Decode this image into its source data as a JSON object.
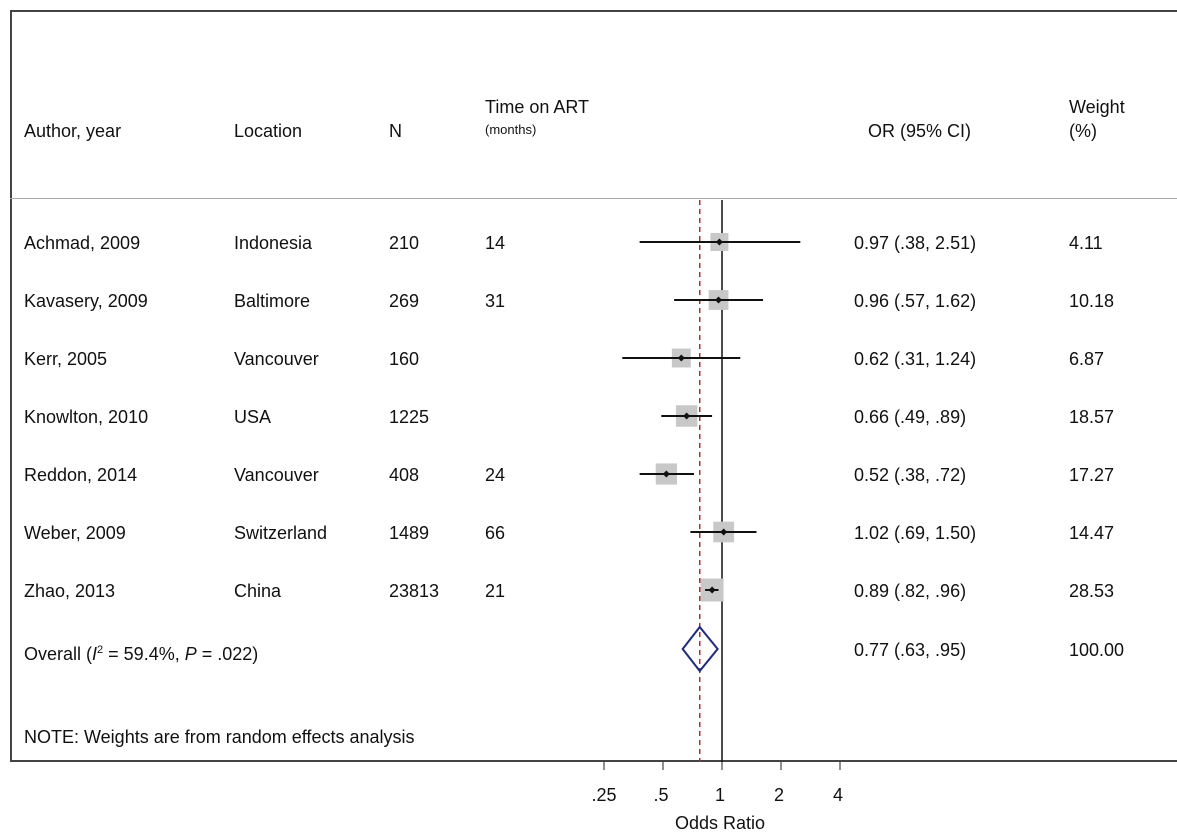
{
  "chart_data": {
    "type": "forest",
    "columns": {
      "author": "Author, year",
      "location": "Location",
      "n": "N",
      "time_title": "Time on ART",
      "time_sub": "(months)",
      "or": "OR (95% CI)",
      "weight_title": "Weight",
      "weight_sub": "(%)"
    },
    "studies": [
      {
        "author": "Achmad, 2009",
        "location": "Indonesia",
        "n": "210",
        "time": "14",
        "or": 0.97,
        "lo": 0.38,
        "hi": 2.51,
        "or_text": "0.97 (.38, 2.51)",
        "weight": "4.11"
      },
      {
        "author": "Kavasery, 2009",
        "location": "Baltimore",
        "n": "269",
        "time": "31",
        "or": 0.96,
        "lo": 0.57,
        "hi": 1.62,
        "or_text": "0.96 (.57, 1.62)",
        "weight": "10.18"
      },
      {
        "author": "Kerr, 2005",
        "location": "Vancouver",
        "n": "160",
        "time": "",
        "or": 0.62,
        "lo": 0.31,
        "hi": 1.24,
        "or_text": "0.62 (.31, 1.24)",
        "weight": "6.87"
      },
      {
        "author": "Knowlton, 2010",
        "location": "USA",
        "n": "1225",
        "time": "",
        "or": 0.66,
        "lo": 0.49,
        "hi": 0.89,
        "or_text": "0.66 (.49, .89)",
        "weight": "18.57"
      },
      {
        "author": "Reddon, 2014",
        "location": "Vancouver",
        "n": "408",
        "time": "24",
        "or": 0.52,
        "lo": 0.38,
        "hi": 0.72,
        "or_text": "0.52 (.38, .72)",
        "weight": "17.27"
      },
      {
        "author": "Weber, 2009",
        "location": "Switzerland",
        "n": "1489",
        "time": "66",
        "or": 1.02,
        "lo": 0.69,
        "hi": 1.5,
        "or_text": "1.02 (.69, 1.50)",
        "weight": "14.47"
      },
      {
        "author": "Zhao, 2013",
        "location": "China",
        "n": "23813",
        "time": "21",
        "or": 0.89,
        "lo": 0.82,
        "hi": 0.96,
        "or_text": "0.89 (.82, .96)",
        "weight": "28.53"
      }
    ],
    "overall": {
      "label_prefix": "Overall  (",
      "i2_symbol": "I",
      "i2_sup": "2",
      "i2_value": " = 59.4%, ",
      "p_symbol": "P",
      "p_value": " = .022)",
      "or": 0.77,
      "lo": 0.63,
      "hi": 0.95,
      "or_text": "0.77 (.63, .95)",
      "weight": "100.00"
    },
    "note": "NOTE: Weights are from random effects analysis",
    "x_axis": {
      "scale": "log",
      "ticks": [
        0.25,
        0.5,
        1,
        2,
        4
      ],
      "tick_labels": [
        ".25",
        ".5",
        "1",
        "2",
        "4"
      ],
      "label": "Odds Ratio"
    },
    "colors": {
      "ci_line": "#111111",
      "weight_box": "#c8c8c8",
      "diamond": "#1f2a7a",
      "dashed_line": "#b03030"
    }
  }
}
